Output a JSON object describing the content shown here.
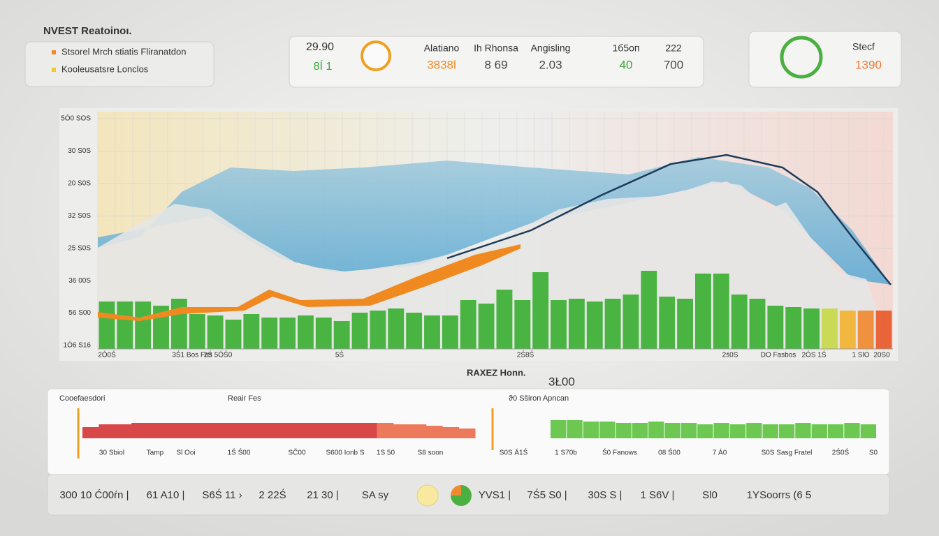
{
  "header": {
    "title": "NVEST Reatoinoı."
  },
  "legend": {
    "items": [
      {
        "label": "Stsorel Mrch stiatis Fliranatdon",
        "color": "#f08a30"
      },
      {
        "label": "Kooleusatsre Lonclos",
        "color": "#f0c830"
      }
    ]
  },
  "stats_card": {
    "main_value": "29.90",
    "main_sub": "8Í 1",
    "columns": [
      {
        "label": "Alatiano",
        "value": "3838l",
        "color": "#f08a20"
      },
      {
        "label": "Ih Rhonsa",
        "value": "8 69",
        "color": "#444444"
      },
      {
        "label": "Angisling",
        "value": "2.03",
        "color": "#444444"
      },
      {
        "label": "1б5oп",
        "value": "40",
        "color": "#3aa63a"
      },
      {
        "label": "222",
        "value": "700",
        "color": "#444444"
      }
    ]
  },
  "side_card": {
    "label": "Stecf",
    "value": "1390"
  },
  "main_chart": {
    "y_labels": [
      "5Ó0 SOS",
      "30 S0S",
      "20 S0S",
      "32 S0S",
      "25 S0S",
      "36 00S",
      "56 S00",
      "1Ó6 S16"
    ],
    "x_labels": [
      "2Ó0Ś",
      "3Ś1 Bos Fos",
      "2Ś 5ÓŚ0",
      "5Ś",
      "2Ś8Ś",
      "2ś0S",
      "DO Fasbos",
      "2ÓS 1Ś",
      "1 SlO",
      "20S0"
    ],
    "bar_color": "#3cb034",
    "end_colors": [
      "#c8d84a",
      "#f2b330",
      "#f08a30",
      "#e85a2a"
    ],
    "bars": [
      68,
      68,
      68,
      62,
      72,
      50,
      48,
      42,
      50,
      45,
      45,
      48,
      45,
      40,
      52,
      55,
      58,
      52,
      48,
      48,
      70,
      65,
      85,
      70,
      110,
      70,
      72,
      68,
      72,
      78,
      112,
      75,
      72,
      108,
      108,
      78,
      72,
      62,
      60,
      58,
      58,
      55,
      55,
      55
    ],
    "caption": "RAXEZ Honn.",
    "caption_value": "3Ł00"
  },
  "strip": {
    "titles": [
      "Cooefaesdori",
      "Reair Fes",
      "ϑ0 Sširon Apncan"
    ],
    "labels": [
      "30 Sbiol",
      "Tamp",
      "Sl Ooi",
      "1Ś Ś00",
      "SČ00",
      "S600 Ionb S",
      "1S 50",
      "S8 soon",
      "S0S Á1Ś",
      "1 S70b",
      "Ś0 Fanows",
      "08 Ś00",
      "7 Á0",
      "S0S Sasg Fratel",
      "2Ś0Ś",
      "S0"
    ],
    "red_bars": [
      16,
      20,
      20,
      22,
      22,
      22,
      22,
      22,
      22,
      22,
      22,
      22,
      22,
      22,
      22,
      22,
      22,
      22,
      22,
      20,
      20,
      18,
      16,
      14
    ],
    "green_bars": [
      26,
      26,
      24,
      24,
      22,
      22,
      24,
      22,
      22,
      20,
      22,
      20,
      22,
      20,
      20,
      22,
      20,
      20,
      22,
      20
    ]
  },
  "footer": {
    "items": [
      "300 10 Ć00ŕn |",
      "61 A10 |",
      "S6Ś 11 ›",
      "2 22Ś",
      "21 30 |",
      "SA sy",
      "YVS1 |",
      "7Ś5 S0 |",
      "30S S |",
      "1 S6V |",
      "Sl0",
      "1YSoorrs (6 5"
    ]
  }
}
